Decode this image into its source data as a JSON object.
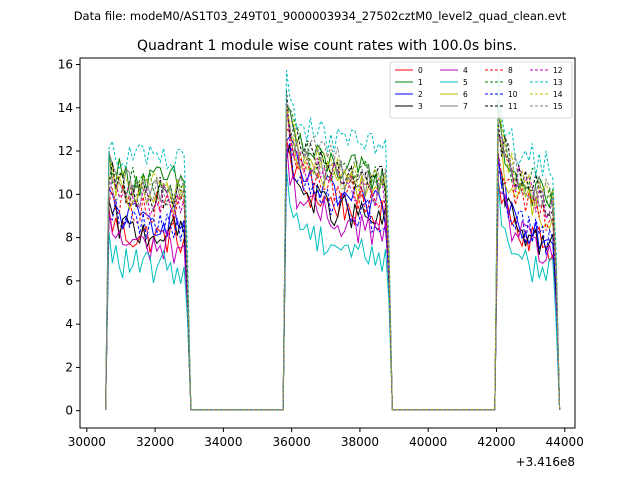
{
  "figure": {
    "suptitle": "Data file: modeM0/AS1T03_249T01_9000003934_27502cztM0_level2_quad_clean.evt"
  },
  "chart_data": {
    "type": "line",
    "title": "Quadrant 1 module wise count rates with 100.0s bins.",
    "xlabel": "",
    "ylabel": "",
    "x_offset_label": "+3.416e8",
    "xlim": [
      29800,
      44300
    ],
    "ylim": [
      -0.8,
      16.3
    ],
    "xticks": [
      30000,
      32000,
      34000,
      36000,
      38000,
      40000,
      42000,
      44000
    ],
    "yticks": [
      0,
      2,
      4,
      6,
      8,
      10,
      12,
      14,
      16
    ],
    "legend_position": "top-right",
    "segments": [
      {
        "start": 30650,
        "end": 32950
      },
      {
        "start": 35850,
        "end": 38850
      },
      {
        "start": 42050,
        "end": 43750
      }
    ],
    "gaps": [
      {
        "x": [
          33050,
          33150,
          35750
        ],
        "y": [
          0.05,
          0.05,
          0.05
        ]
      },
      {
        "x": [
          38950,
          39050,
          41950
        ],
        "y": [
          0.05,
          0.05,
          0.05
        ]
      }
    ],
    "series": [
      {
        "name": "0",
        "color": "#ff0000",
        "dash": "solid",
        "levels": [
          8.0,
          10.2,
          8.8
        ]
      },
      {
        "name": "1",
        "color": "#008000",
        "dash": "solid",
        "levels": [
          10.6,
          12.0,
          11.0
        ]
      },
      {
        "name": "2",
        "color": "#0000ff",
        "dash": "solid",
        "levels": [
          8.8,
          10.6,
          9.2
        ]
      },
      {
        "name": "3",
        "color": "#000000",
        "dash": "solid",
        "levels": [
          8.2,
          10.0,
          8.8
        ]
      },
      {
        "name": "4",
        "color": "#bf00bf",
        "dash": "solid",
        "levels": [
          7.6,
          9.5,
          8.4
        ]
      },
      {
        "name": "5",
        "color": "#00bfbf",
        "dash": "solid",
        "levels": [
          6.6,
          8.4,
          7.5
        ]
      },
      {
        "name": "6",
        "color": "#bfbf00",
        "dash": "solid",
        "levels": [
          9.8,
          11.4,
          10.2
        ]
      },
      {
        "name": "7",
        "color": "#808080",
        "dash": "solid",
        "levels": [
          10.2,
          11.6,
          10.6
        ]
      },
      {
        "name": "8",
        "color": "#ff0000",
        "dash": "dashed",
        "levels": [
          9.4,
          11.0,
          10.0
        ]
      },
      {
        "name": "9",
        "color": "#008000",
        "dash": "dashed",
        "levels": [
          10.4,
          12.0,
          11.2
        ]
      },
      {
        "name": "10",
        "color": "#0000ff",
        "dash": "dashed",
        "levels": [
          8.6,
          10.2,
          9.0
        ]
      },
      {
        "name": "11",
        "color": "#000000",
        "dash": "dashed",
        "levels": [
          10.0,
          11.8,
          11.0
        ]
      },
      {
        "name": "12",
        "color": "#bf00bf",
        "dash": "dashed",
        "levels": [
          9.6,
          11.4,
          10.8
        ]
      },
      {
        "name": "13",
        "color": "#00bfbf",
        "dash": "dashed",
        "levels": [
          11.6,
          13.2,
          12.4
        ]
      },
      {
        "name": "14",
        "color": "#bfbf00",
        "dash": "dashed",
        "levels": [
          10.2,
          11.8,
          11.0
        ]
      },
      {
        "name": "15",
        "color": "#808080",
        "dash": "dashed",
        "levels": [
          10.0,
          12.2,
          11.2
        ]
      }
    ]
  }
}
